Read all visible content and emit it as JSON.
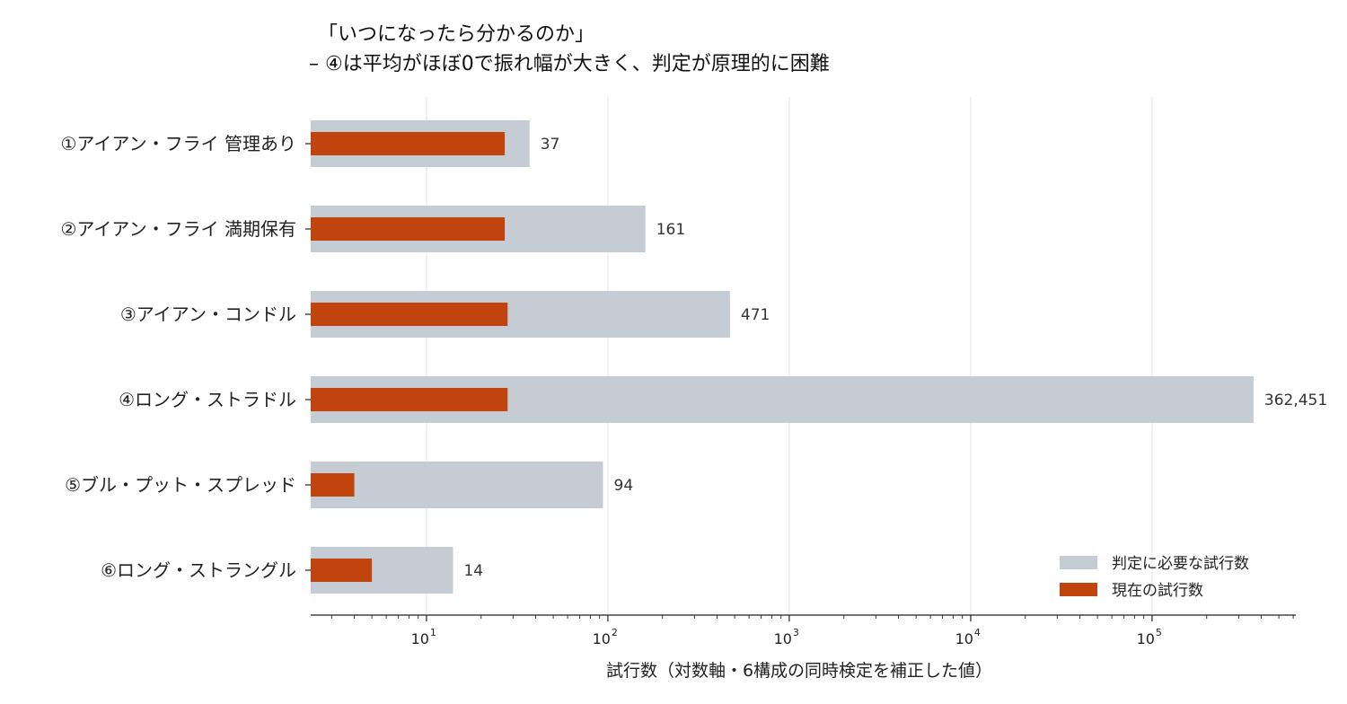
{
  "chart_data": {
    "type": "bar",
    "orientation": "horizontal",
    "title": "「いつになったら分かるのか」",
    "subtitle": "– ④は平均がほぼ0で振れ幅が大きく、判定が原理的に困難",
    "xlabel": "試行数（対数軸・6構成の同時検定を補正した値）",
    "ylabel": "",
    "x_scale": "log",
    "xlim": [
      2.3,
      620000
    ],
    "x_ticks": [
      {
        "base": "10",
        "exp": "1",
        "value": 10
      },
      {
        "base": "10",
        "exp": "2",
        "value": 100
      },
      {
        "base": "10",
        "exp": "3",
        "value": 1000
      },
      {
        "base": "10",
        "exp": "4",
        "value": 10000
      },
      {
        "base": "10",
        "exp": "5",
        "value": 100000
      }
    ],
    "grid": "x-major",
    "legend_position": "lower-right",
    "categories": [
      "①アイアン・フライ 管理あり",
      "②アイアン・フライ 満期保有",
      "③アイアン・コンドル",
      "④ロング・ストラドル",
      "⑤ブル・プット・スプレッド",
      "⑥ロング・ストラングル"
    ],
    "series": [
      {
        "name": "判定に必要な試行数",
        "color": "#c5ccd4",
        "values": [
          37,
          161,
          471,
          362451,
          94,
          14
        ],
        "labels": [
          "37",
          "161",
          "471",
          "362,451",
          "94",
          "14"
        ]
      },
      {
        "name": "現在の試行数",
        "color": "#c1440e",
        "values": [
          27,
          27,
          28,
          28,
          4,
          5
        ]
      }
    ]
  }
}
